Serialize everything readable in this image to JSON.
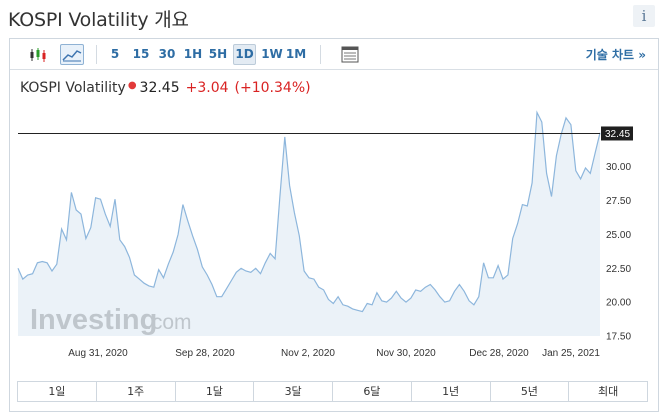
{
  "page": {
    "title": "KOSPI Volatility 개요",
    "info_glyph": "i"
  },
  "toolbar": {
    "timeframes": [
      "5",
      "15",
      "30",
      "1H",
      "5H",
      "1D",
      "1W",
      "1M"
    ],
    "active_timeframe": "1D",
    "advanced_chart": "기술 차트 »"
  },
  "quote": {
    "name": "KOSPI Volatility",
    "last": "32.45",
    "change": "+3.04",
    "change_pct": "(+10.34%)"
  },
  "chart_data": {
    "type": "area",
    "watermark": "Investing.com",
    "x_ticks": [
      "Aug 31, 2020",
      "Sep 28, 2020",
      "Nov 2, 2020",
      "Nov 30, 2020",
      "Dec 28, 2020",
      "Jan 25, 2021"
    ],
    "y_ticks": [
      "30.00",
      "27.50",
      "25.00",
      "22.50",
      "20.00",
      "17.50"
    ],
    "ylim": [
      17.5,
      34.7
    ],
    "last_value_label": "32.45",
    "last_value": 32.45,
    "values": [
      22.5,
      21.7,
      22.0,
      22.1,
      22.9,
      23.0,
      22.9,
      22.3,
      22.8,
      25.4,
      24.6,
      28.1,
      26.8,
      26.5,
      24.7,
      25.5,
      27.7,
      27.6,
      26.5,
      25.6,
      27.6,
      24.6,
      24.1,
      23.3,
      22.0,
      21.7,
      21.4,
      21.2,
      21.1,
      22.4,
      21.8,
      22.8,
      23.7,
      25.0,
      27.2,
      26.0,
      24.9,
      23.9,
      22.6,
      22.0,
      21.3,
      20.4,
      20.4,
      21.0,
      21.6,
      22.2,
      22.5,
      22.3,
      22.2,
      22.5,
      22.1,
      22.9,
      23.6,
      23.2,
      27.8,
      32.2,
      28.6,
      26.6,
      24.9,
      22.3,
      21.8,
      21.7,
      21.1,
      20.9,
      20.2,
      19.9,
      20.4,
      19.8,
      19.7,
      19.5,
      19.4,
      19.3,
      19.9,
      19.8,
      20.7,
      20.1,
      20.0,
      20.3,
      20.8,
      20.3,
      20.0,
      20.3,
      20.9,
      20.8,
      21.1,
      21.3,
      20.9,
      20.4,
      20.0,
      20.1,
      20.8,
      21.3,
      20.8,
      20.1,
      19.8,
      20.4,
      22.9,
      21.8,
      21.8,
      22.7,
      21.7,
      22.0,
      24.7,
      25.8,
      27.2,
      27.1,
      28.8,
      34.0,
      33.3,
      29.5,
      27.8,
      30.8,
      32.4,
      33.6,
      33.1,
      29.7,
      29.1,
      29.9,
      29.5,
      31.0,
      32.5
    ]
  },
  "periods": [
    "1일",
    "1주",
    "1달",
    "3달",
    "6달",
    "1년",
    "5년",
    "최대"
  ]
}
